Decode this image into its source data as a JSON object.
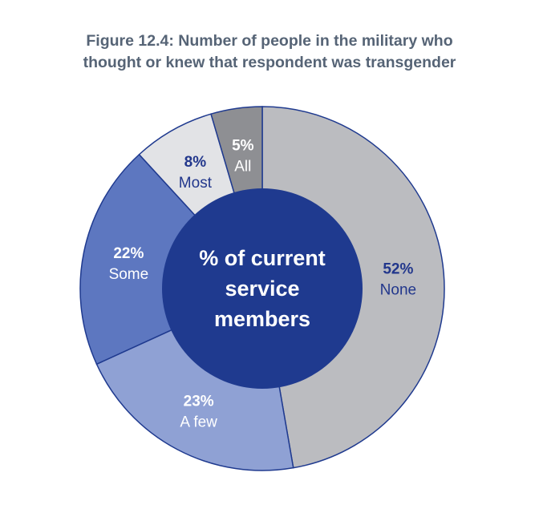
{
  "chart_data": {
    "type": "pie",
    "title_line1": "Figure 12.4: Number of people in the military who",
    "title_line2": "thought or knew that respondent was transgender",
    "center_label": [
      "% of current",
      "service",
      "members"
    ],
    "series": [
      {
        "name": "None",
        "value": 52,
        "pct_label": "52%",
        "color": "#bbbcc0",
        "text_color": "#22378c"
      },
      {
        "name": "A few",
        "value": 23,
        "pct_label": "23%",
        "color": "#8fa1d4",
        "text_color": "#ffffff"
      },
      {
        "name": "Some",
        "value": 22,
        "pct_label": "22%",
        "color": "#5d77c0",
        "text_color": "#ffffff"
      },
      {
        "name": "Most",
        "value": 8,
        "pct_label": "8%",
        "color": "#e2e3e6",
        "text_color": "#22378c"
      },
      {
        "name": "All",
        "value": 5,
        "pct_label": "5%",
        "color": "#8e8f93",
        "text_color": "#ffffff"
      }
    ],
    "center_color": "#1f3a8f",
    "stroke_color": "#1f3a8f"
  }
}
